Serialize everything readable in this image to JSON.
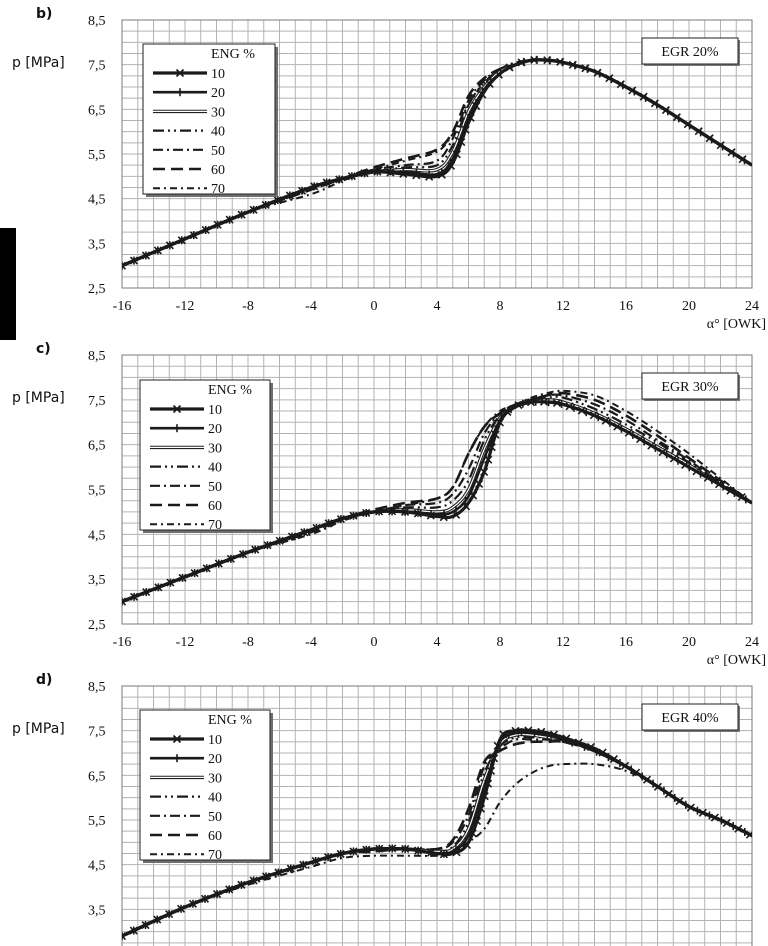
{
  "legend_title": "ENG %",
  "x_axis_label": "α° [OWK]",
  "y_axis_label": "p [MPa]",
  "chart_data": [
    {
      "panel_label": "b)",
      "type": "line",
      "annotation": "EGR 20%",
      "xlabel": "α° [OWK]",
      "ylabel": "p [MPa]",
      "xlim": [
        -16,
        24
      ],
      "ylim": [
        2.5,
        8.5
      ],
      "x_ticks": [
        "-16",
        "-12",
        "-8",
        "-4",
        "0",
        "4",
        "8",
        "12",
        "16",
        "20",
        "24"
      ],
      "y_ticks": [
        "2,5",
        "3,5",
        "4,5",
        "5,5",
        "6,5",
        "7,5",
        "8,5"
      ],
      "grid": true,
      "legend_position": "top-left",
      "x": [
        -16,
        -12,
        -8,
        -4,
        -2,
        0,
        2,
        4,
        5,
        6,
        7,
        8,
        9,
        10,
        11,
        12,
        14,
        16,
        18,
        20,
        22,
        24
      ],
      "series": [
        {
          "name": "10",
          "values": [
            3.0,
            3.6,
            4.2,
            4.75,
            4.95,
            5.1,
            5.05,
            5.0,
            5.3,
            6.2,
            6.9,
            7.3,
            7.5,
            7.6,
            7.6,
            7.55,
            7.35,
            7.0,
            6.6,
            6.15,
            5.7,
            5.25
          ]
        },
        {
          "name": "20",
          "values": [
            3.0,
            3.6,
            4.2,
            4.75,
            4.95,
            5.1,
            5.1,
            5.05,
            5.4,
            6.3,
            6.95,
            7.3,
            7.5,
            7.6,
            7.6,
            7.55,
            7.35,
            7.0,
            6.6,
            6.15,
            5.7,
            5.25
          ]
        },
        {
          "name": "30",
          "values": [
            3.0,
            3.6,
            4.2,
            4.75,
            4.95,
            5.1,
            5.15,
            5.15,
            5.55,
            6.45,
            7.0,
            7.35,
            7.5,
            7.6,
            7.6,
            7.55,
            7.35,
            7.0,
            6.6,
            6.15,
            5.7,
            5.25
          ]
        },
        {
          "name": "40",
          "values": [
            3.0,
            3.6,
            4.2,
            4.75,
            4.95,
            5.1,
            5.2,
            5.25,
            5.7,
            6.6,
            7.1,
            7.35,
            7.5,
            7.6,
            7.6,
            7.55,
            7.35,
            7.0,
            6.6,
            6.15,
            5.7,
            5.25
          ]
        },
        {
          "name": "50",
          "values": [
            3.0,
            3.6,
            4.2,
            4.7,
            4.95,
            5.15,
            5.25,
            5.35,
            5.85,
            6.7,
            7.15,
            7.4,
            7.5,
            7.6,
            7.6,
            7.55,
            7.35,
            7.0,
            6.6,
            6.15,
            5.7,
            5.25
          ]
        },
        {
          "name": "60",
          "values": [
            3.0,
            3.6,
            4.2,
            4.7,
            4.95,
            5.2,
            5.4,
            5.6,
            6.0,
            6.8,
            7.2,
            7.4,
            7.5,
            7.6,
            7.6,
            7.55,
            7.35,
            7.0,
            6.6,
            6.15,
            5.7,
            5.25
          ]
        },
        {
          "name": "70",
          "values": [
            3.0,
            3.6,
            4.2,
            4.6,
            4.9,
            5.15,
            5.35,
            5.55,
            5.95,
            6.6,
            7.1,
            7.4,
            7.55,
            7.6,
            7.6,
            7.55,
            7.35,
            7.0,
            6.6,
            6.15,
            5.7,
            5.25
          ]
        }
      ]
    },
    {
      "panel_label": "c)",
      "type": "line",
      "annotation": "EGR 30%",
      "xlabel": "α° [OWK]",
      "ylabel": "p [MPa]",
      "xlim": [
        -16,
        24
      ],
      "ylim": [
        2.5,
        8.5
      ],
      "x_ticks": [
        "-16",
        "-12",
        "-8",
        "-4",
        "0",
        "4",
        "8",
        "12",
        "16",
        "20",
        "24"
      ],
      "y_ticks": [
        "2,5",
        "3,5",
        "4,5",
        "5,5",
        "6,5",
        "7,5",
        "8,5"
      ],
      "grid": true,
      "legend_position": "top-left",
      "x": [
        -16,
        -12,
        -8,
        -4,
        -2,
        0,
        2,
        4,
        5,
        6,
        7,
        8,
        9,
        10,
        11,
        12,
        14,
        16,
        18,
        20,
        22,
        24
      ],
      "series": [
        {
          "name": "10",
          "values": [
            3.0,
            3.55,
            4.1,
            4.6,
            4.85,
            5.0,
            5.0,
            4.9,
            4.9,
            5.2,
            5.9,
            7.0,
            7.35,
            7.45,
            7.45,
            7.4,
            7.15,
            6.8,
            6.4,
            6.0,
            5.6,
            5.2
          ]
        },
        {
          "name": "20",
          "values": [
            3.0,
            3.55,
            4.1,
            4.6,
            4.85,
            5.0,
            5.0,
            4.95,
            5.0,
            5.35,
            6.2,
            7.05,
            7.35,
            7.45,
            7.45,
            7.4,
            7.15,
            6.8,
            6.4,
            6.0,
            5.6,
            5.2
          ]
        },
        {
          "name": "30",
          "values": [
            3.0,
            3.55,
            4.1,
            4.6,
            4.85,
            5.0,
            5.05,
            5.0,
            5.1,
            5.5,
            6.4,
            7.1,
            7.35,
            7.45,
            7.5,
            7.45,
            7.2,
            6.85,
            6.45,
            6.05,
            5.6,
            5.2
          ]
        },
        {
          "name": "40",
          "values": [
            3.0,
            3.55,
            4.1,
            4.6,
            4.85,
            5.0,
            5.1,
            5.1,
            5.25,
            5.7,
            6.6,
            7.15,
            7.35,
            7.5,
            7.55,
            7.55,
            7.3,
            6.95,
            6.55,
            6.1,
            5.65,
            5.2
          ]
        },
        {
          "name": "50",
          "values": [
            3.0,
            3.55,
            4.1,
            4.55,
            4.85,
            5.0,
            5.15,
            5.2,
            5.4,
            5.95,
            6.75,
            7.2,
            7.4,
            7.5,
            7.6,
            7.6,
            7.4,
            7.05,
            6.6,
            6.15,
            5.65,
            5.2
          ]
        },
        {
          "name": "60",
          "values": [
            3.0,
            3.55,
            4.1,
            4.55,
            4.85,
            5.05,
            5.2,
            5.3,
            5.55,
            6.3,
            6.9,
            7.2,
            7.4,
            7.5,
            7.6,
            7.65,
            7.5,
            7.15,
            6.7,
            6.2,
            5.7,
            5.2
          ]
        },
        {
          "name": "70",
          "values": [
            3.0,
            3.55,
            4.1,
            4.5,
            4.8,
            5.0,
            5.15,
            5.3,
            5.55,
            6.3,
            6.9,
            7.25,
            7.4,
            7.55,
            7.65,
            7.7,
            7.6,
            7.25,
            6.8,
            6.3,
            5.75,
            5.2
          ]
        }
      ]
    },
    {
      "panel_label": "d)",
      "type": "line",
      "annotation": "EGR 40%",
      "xlabel": "",
      "ylabel": "p [MPa]",
      "xlim": [
        -16,
        24
      ],
      "ylim": [
        2.5,
        8.5
      ],
      "x_ticks": [],
      "y_ticks": [
        "2,5",
        "3,5",
        "4,5",
        "5,5",
        "6,5",
        "7,5",
        "8,5"
      ],
      "grid": true,
      "legend_position": "top-left",
      "x": [
        -16,
        -12,
        -8,
        -4,
        -2,
        0,
        2,
        4,
        5,
        6,
        7,
        8,
        9,
        10,
        11,
        12,
        14,
        16,
        18,
        20,
        22,
        24
      ],
      "series": [
        {
          "name": "10",
          "values": [
            2.9,
            3.55,
            4.1,
            4.55,
            4.75,
            4.85,
            4.85,
            4.75,
            4.75,
            5.0,
            6.0,
            7.3,
            7.5,
            7.5,
            7.45,
            7.35,
            7.1,
            6.7,
            6.25,
            5.8,
            5.5,
            5.15
          ]
        },
        {
          "name": "20",
          "values": [
            2.9,
            3.55,
            4.1,
            4.55,
            4.75,
            4.85,
            4.85,
            4.75,
            4.8,
            5.15,
            6.2,
            7.25,
            7.45,
            7.45,
            7.4,
            7.3,
            7.05,
            6.7,
            6.25,
            5.8,
            5.5,
            5.15
          ]
        },
        {
          "name": "30",
          "values": [
            2.9,
            3.55,
            4.1,
            4.55,
            4.75,
            4.85,
            4.85,
            4.8,
            4.85,
            5.3,
            6.4,
            7.2,
            7.4,
            7.4,
            7.35,
            7.3,
            7.05,
            6.7,
            6.25,
            5.8,
            5.5,
            5.15
          ]
        },
        {
          "name": "40",
          "values": [
            2.9,
            3.55,
            4.1,
            4.55,
            4.75,
            4.85,
            4.85,
            4.8,
            4.9,
            5.45,
            6.55,
            7.15,
            7.35,
            7.35,
            7.35,
            7.3,
            7.05,
            6.7,
            6.25,
            5.8,
            5.5,
            5.15
          ]
        },
        {
          "name": "50",
          "values": [
            2.9,
            3.55,
            4.1,
            4.55,
            4.75,
            4.85,
            4.85,
            4.85,
            5.0,
            5.6,
            6.7,
            7.1,
            7.3,
            7.3,
            7.3,
            7.25,
            7.05,
            6.7,
            6.25,
            5.8,
            5.5,
            5.15
          ]
        },
        {
          "name": "60",
          "values": [
            2.9,
            3.55,
            4.1,
            4.55,
            4.75,
            4.8,
            4.85,
            4.85,
            5.05,
            5.75,
            6.8,
            7.05,
            7.2,
            7.25,
            7.25,
            7.25,
            7.05,
            6.7,
            6.25,
            5.8,
            5.5,
            5.15
          ]
        },
        {
          "name": "70",
          "values": [
            2.9,
            3.55,
            4.05,
            4.45,
            4.65,
            4.7,
            4.7,
            4.7,
            4.75,
            5.0,
            5.3,
            5.9,
            6.3,
            6.55,
            6.7,
            6.75,
            6.75,
            6.6,
            6.25,
            5.8,
            5.5,
            5.15
          ]
        }
      ]
    }
  ]
}
